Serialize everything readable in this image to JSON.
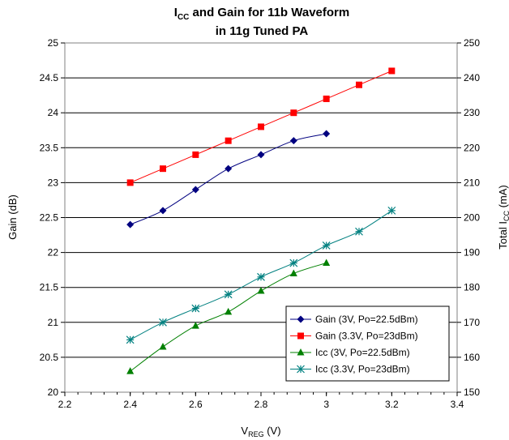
{
  "chart_data": {
    "type": "line",
    "title": {
      "line1_main": "I",
      "line1_sub": "CC",
      "line1_rest": " and Gain for 11b Waveform",
      "line2": "in 11g Tuned PA"
    },
    "xlabel": {
      "main": "V",
      "sub": "REG",
      "rest": " (V)"
    },
    "ylabel_left": "Gain (dB)",
    "ylabel_right": {
      "main": "Total I",
      "sub": "CC",
      "rest": " (mA)"
    },
    "xlim": [
      2.2,
      3.4
    ],
    "ylim_left": [
      20,
      25
    ],
    "ylim_right": [
      150,
      250
    ],
    "x_ticks": [
      "2.2",
      "2.4",
      "2.6",
      "2.8",
      "3",
      "3.2",
      "3.4"
    ],
    "y_left_ticks": [
      "20",
      "20.5",
      "21",
      "21.5",
      "22",
      "22.5",
      "23",
      "23.5",
      "24",
      "24.5",
      "25"
    ],
    "y_right_ticks": [
      "150",
      "160",
      "170",
      "180",
      "190",
      "200",
      "210",
      "220",
      "230",
      "240",
      "250"
    ],
    "grid": "horizontal",
    "legend_position": "bottom-right",
    "series": [
      {
        "name": "Gain (3V, Po=22.5dBm)",
        "axis": "left",
        "marker": "diamond",
        "color": "#000080",
        "x": [
          2.4,
          2.5,
          2.6,
          2.7,
          2.8,
          2.9,
          3.0
        ],
        "y": [
          22.4,
          22.6,
          22.9,
          23.2,
          23.4,
          23.6,
          23.7
        ]
      },
      {
        "name": "Gain (3.3V, Po=23dBm)",
        "axis": "left",
        "marker": "square",
        "color": "#ff0000",
        "x": [
          2.4,
          2.5,
          2.6,
          2.7,
          2.8,
          2.9,
          3.0,
          3.1,
          3.2
        ],
        "y": [
          23.0,
          23.2,
          23.4,
          23.6,
          23.8,
          24.0,
          24.2,
          24.4,
          24.6
        ]
      },
      {
        "name": "Icc (3V, Po=22.5dBm)",
        "axis": "right",
        "marker": "triangle",
        "color": "#008000",
        "x": [
          2.4,
          2.5,
          2.6,
          2.7,
          2.8,
          2.9,
          3.0
        ],
        "y": [
          156,
          163,
          169,
          173,
          179,
          184,
          187
        ]
      },
      {
        "name": "Icc (3.3V, Po=23dBm)",
        "axis": "right",
        "marker": "asterisk",
        "color": "#008080",
        "x": [
          2.4,
          2.5,
          2.6,
          2.7,
          2.8,
          2.9,
          3.0,
          3.1,
          3.2
        ],
        "y": [
          165,
          170,
          174,
          178,
          183,
          187,
          192,
          196,
          202
        ]
      }
    ]
  }
}
